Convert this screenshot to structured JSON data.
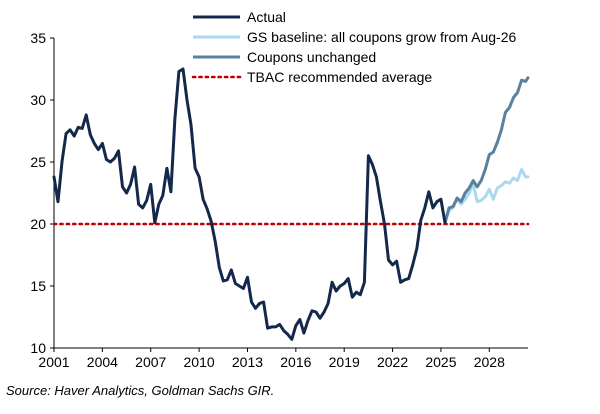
{
  "chart_data": {
    "type": "line",
    "title": "",
    "xlabel": "",
    "ylabel": "",
    "xlim": [
      2001,
      2030.4
    ],
    "ylim": [
      10,
      35
    ],
    "xticks": [
      "2001",
      "2004",
      "2007",
      "2010",
      "2013",
      "2016",
      "2019",
      "2022",
      "2025",
      "2028"
    ],
    "yticks": [
      "10",
      "15",
      "20",
      "25",
      "30",
      "35"
    ],
    "grid": false,
    "legend_position": "top-right",
    "source": "Source: Haver Analytics, Goldman Sachs GIR.",
    "series": [
      {
        "name": "Actual",
        "color": "#14284b",
        "style": "solid",
        "x": [
          2001.0,
          2001.25,
          2001.5,
          2001.75,
          2002.0,
          2002.25,
          2002.5,
          2002.75,
          2003.0,
          2003.25,
          2003.5,
          2003.75,
          2004.0,
          2004.25,
          2004.5,
          2004.75,
          2005.0,
          2005.25,
          2005.5,
          2005.75,
          2006.0,
          2006.25,
          2006.5,
          2006.75,
          2007.0,
          2007.25,
          2007.5,
          2007.75,
          2008.0,
          2008.25,
          2008.5,
          2008.75,
          2009.0,
          2009.25,
          2009.5,
          2009.75,
          2010.0,
          2010.25,
          2010.5,
          2010.75,
          2011.0,
          2011.25,
          2011.5,
          2011.75,
          2012.0,
          2012.25,
          2012.5,
          2012.75,
          2013.0,
          2013.25,
          2013.5,
          2013.75,
          2014.0,
          2014.25,
          2014.5,
          2014.75,
          2015.0,
          2015.25,
          2015.5,
          2015.75,
          2016.0,
          2016.25,
          2016.5,
          2016.75,
          2017.0,
          2017.25,
          2017.5,
          2017.75,
          2018.0,
          2018.25,
          2018.5,
          2018.75,
          2019.0,
          2019.25,
          2019.5,
          2019.75,
          2020.0,
          2020.25,
          2020.5,
          2020.75,
          2021.0,
          2021.25,
          2021.5,
          2021.75,
          2022.0,
          2022.25,
          2022.5,
          2022.75,
          2023.0,
          2023.25,
          2023.5,
          2023.75,
          2024.0,
          2024.25,
          2024.5,
          2024.75,
          2025.0,
          2025.25
        ],
        "y": [
          23.8,
          21.8,
          25.1,
          27.3,
          27.6,
          27.1,
          27.8,
          27.7,
          28.8,
          27.2,
          26.5,
          26.0,
          26.5,
          25.2,
          25.0,
          25.3,
          25.9,
          23.0,
          22.5,
          23.2,
          24.6,
          21.6,
          21.3,
          21.9,
          23.2,
          20.1,
          21.6,
          22.3,
          24.5,
          22.6,
          28.5,
          32.3,
          32.5,
          30.0,
          28.0,
          24.5,
          23.8,
          22.0,
          21.2,
          20.2,
          18.6,
          16.5,
          15.4,
          15.5,
          16.3,
          15.2,
          15.0,
          14.8,
          15.7,
          13.7,
          13.2,
          13.6,
          13.7,
          11.6,
          11.7,
          11.7,
          11.9,
          11.4,
          11.1,
          10.7,
          11.8,
          12.3,
          11.2,
          12.2,
          13.0,
          12.9,
          12.4,
          12.9,
          13.6,
          15.3,
          14.6,
          15.0,
          15.2,
          15.6,
          14.1,
          14.5,
          14.3,
          15.3,
          25.5,
          24.8,
          23.8,
          21.8,
          20.0,
          17.1,
          16.7,
          17.0,
          15.3,
          15.5,
          15.6,
          16.7,
          18.0,
          20.3,
          21.3,
          22.6,
          21.3,
          21.8,
          22.0,
          20.1
        ]
      },
      {
        "name": "GS baseline: all coupons grow from Aug-26",
        "color": "#aad9ef",
        "style": "solid",
        "x": [
          2025.25,
          2025.5,
          2025.75,
          2026.0,
          2026.25,
          2026.5,
          2026.75,
          2027.0,
          2027.25,
          2027.5,
          2027.75,
          2028.0,
          2028.25,
          2028.5,
          2028.75,
          2029.0,
          2029.25,
          2029.5,
          2029.75,
          2030.0,
          2030.25,
          2030.4
        ],
        "y": [
          20.1,
          21.1,
          21.3,
          22.0,
          21.6,
          22.0,
          22.5,
          23.2,
          21.8,
          21.9,
          22.2,
          22.8,
          22.0,
          22.9,
          23.1,
          23.4,
          23.3,
          23.7,
          23.5,
          24.4,
          23.8,
          23.8
        ]
      },
      {
        "name": "Coupons unchanged",
        "color": "#58809f",
        "style": "solid",
        "x": [
          2025.25,
          2025.5,
          2025.75,
          2026.0,
          2026.25,
          2026.5,
          2026.75,
          2027.0,
          2027.25,
          2027.5,
          2027.75,
          2028.0,
          2028.25,
          2028.5,
          2028.75,
          2029.0,
          2029.25,
          2029.5,
          2029.75,
          2030.0,
          2030.25,
          2030.4
        ],
        "y": [
          20.1,
          21.3,
          21.4,
          22.1,
          21.8,
          22.5,
          22.9,
          23.5,
          23.0,
          23.5,
          24.4,
          25.6,
          25.8,
          26.6,
          27.6,
          29.0,
          29.4,
          30.2,
          30.6,
          31.6,
          31.5,
          31.8
        ]
      },
      {
        "name": "TBAC recommended average",
        "color": "#c00000",
        "style": "dotted",
        "x": [
          2001.0,
          2030.4
        ],
        "y": [
          20,
          20
        ]
      }
    ]
  }
}
